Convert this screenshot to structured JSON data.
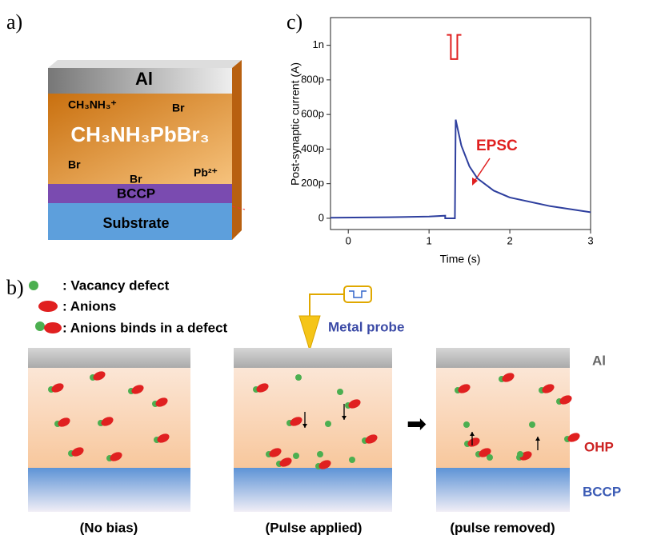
{
  "panel_a": {
    "label": "a)",
    "layers": {
      "top": "Al",
      "material": "CH₃NH₃PbBr₃",
      "htl": "BCCP",
      "substrate": "Substrate"
    },
    "ions": [
      "CH₃NH₃⁺",
      "Br",
      "Br",
      "Br",
      "Pb²⁺"
    ]
  },
  "panel_b": {
    "label": "b)",
    "legend": [
      ": Vacancy defect",
      ": Anions",
      ": Anions binds in a defect"
    ],
    "probe": "Metal probe",
    "layers": [
      "Al",
      "OHP",
      "BCCP"
    ],
    "captions": [
      "(No bias)",
      "(Pulse applied)",
      "(pulse removed)"
    ]
  },
  "chart_data": {
    "type": "line",
    "panel_label": "c)",
    "x_label": "Time (s)",
    "y_label": "Post-synaptic current (A)",
    "xlim": [
      -0.22,
      3
    ],
    "xticks": [
      0,
      1,
      2,
      3
    ],
    "ylim": [
      -6.5e-11,
      1.16e-09
    ],
    "yticks": [
      0,
      {
        "value": 2e-10,
        "label": "200p"
      },
      {
        "value": 4e-10,
        "label": "400p"
      },
      {
        "value": 6e-10,
        "label": "600p"
      },
      {
        "value": 8e-10,
        "label": "800p"
      },
      {
        "value": 1e-09,
        "label": "1n"
      }
    ],
    "annotations": [
      "EPSC"
    ],
    "series": [
      {
        "color": "#2e3f9e",
        "x": [
          -0.22,
          0.5,
          1.0,
          1.2,
          1.2,
          1.32,
          1.33,
          1.4,
          1.5,
          1.6,
          1.8,
          2.0,
          2.5,
          3.0
        ],
        "values": [
          3e-12,
          6e-12,
          1e-11,
          1.5e-11,
          0,
          0,
          5.7e-10,
          4.2e-10,
          3e-10,
          2.3e-10,
          1.6e-10,
          1.2e-10,
          7e-11,
          3.5e-11
        ]
      },
      {
        "color": "#e02020",
        "x": [
          1.22,
          1.27,
          1.27,
          1.35,
          1.35,
          1.4
        ],
        "values": [
          1.06e-09,
          1.06e-09,
          9.2e-10,
          9.2e-10,
          1.06e-09,
          1.06e-09
        ]
      }
    ]
  }
}
